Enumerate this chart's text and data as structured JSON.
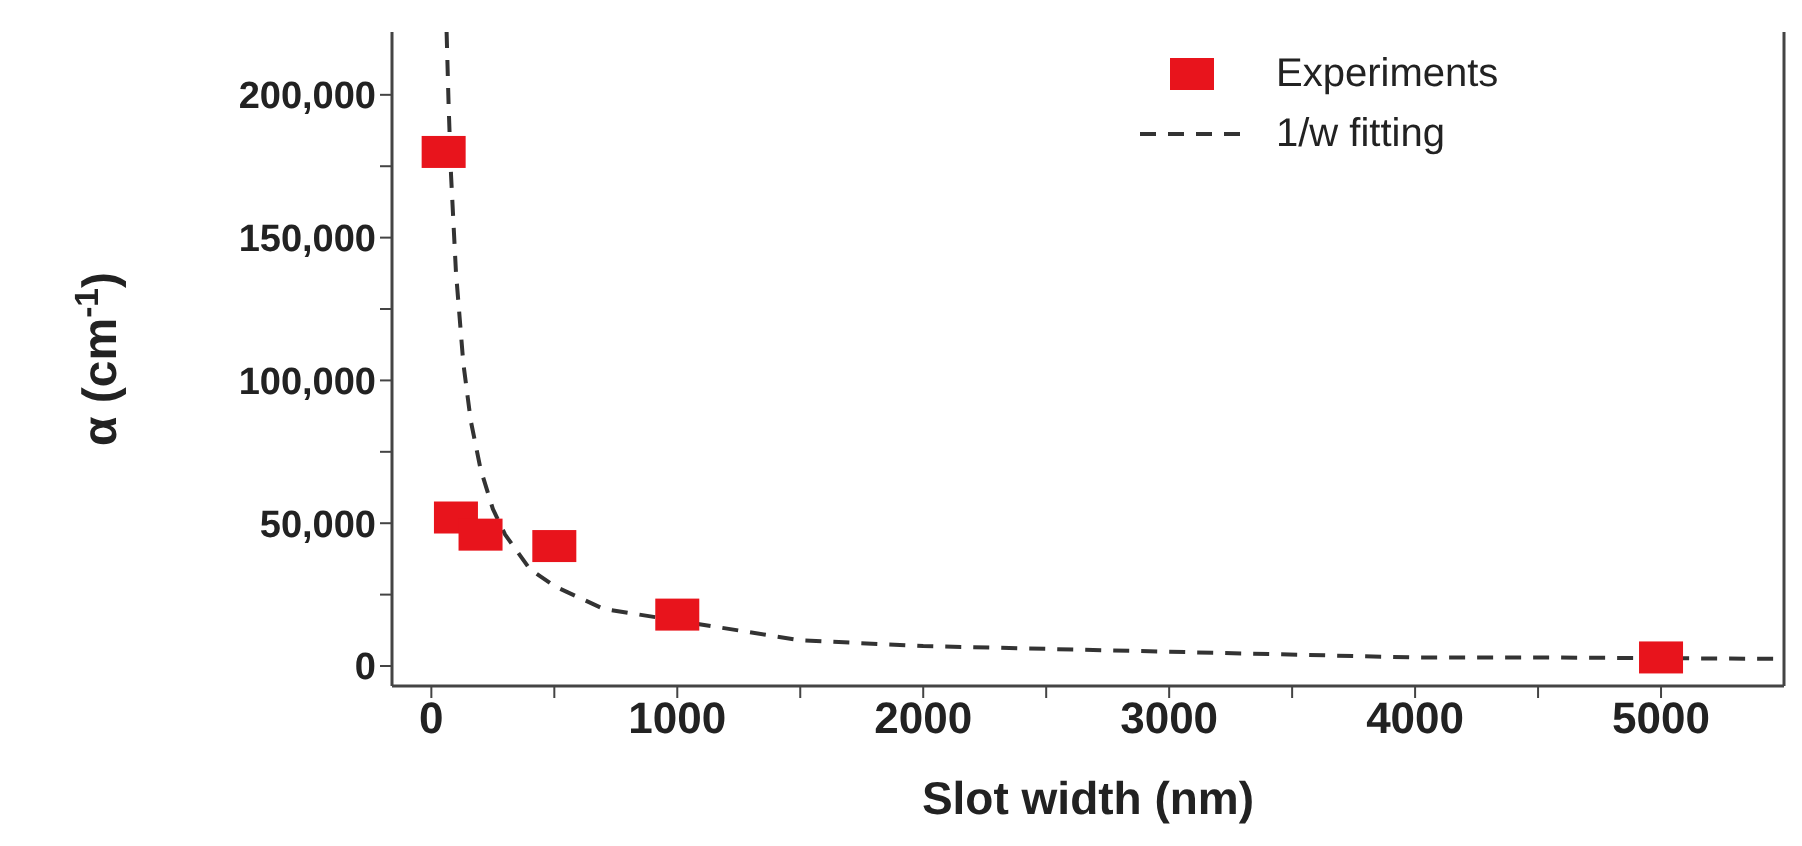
{
  "chart_data": {
    "type": "scatter",
    "xlabel": "Slot width (nm)",
    "ylabel": "α (cm$^{-1}$)",
    "xlim": [
      -160,
      5500
    ],
    "ylim": [
      -7000,
      222000
    ],
    "xticks": [
      0,
      {
        "value": 500,
        "label": null
      },
      1000,
      {
        "value": 1500,
        "label": null
      },
      2000,
      {
        "value": 2500,
        "label": null
      },
      3000,
      {
        "value": 3500,
        "label": null
      },
      4000,
      {
        "value": 4500,
        "label": null
      },
      5000
    ],
    "yticks": [
      {
        "value": 0,
        "label": "0"
      },
      {
        "value": 25000,
        "label": null
      },
      {
        "value": 50000,
        "label": "50,000"
      },
      {
        "value": 75000,
        "label": null
      },
      {
        "value": 100000,
        "label": "100,000"
      },
      {
        "value": 125000,
        "label": null
      },
      {
        "value": 150000,
        "label": "150,000"
      },
      {
        "value": 175000,
        "label": null
      },
      {
        "value": 200000,
        "label": "200,000"
      }
    ],
    "legend": "top right",
    "grid": false,
    "series": [
      {
        "name": "Experiments",
        "marker": "square",
        "color": "#e8141c",
        "x": [
          50,
          100,
          200,
          500,
          1000,
          5000
        ],
        "values": [
          180000,
          52000,
          46000,
          42000,
          18000,
          3000
        ]
      },
      {
        "name": "1/w fitting",
        "type": "line",
        "line_style": "dashed",
        "marker": "none",
        "color": "#333333",
        "x": [
          62,
          70,
          80,
          100,
          130,
          160,
          200,
          250,
          300,
          400,
          500,
          700,
          1500,
          2000,
          3000,
          4000,
          4500,
          5500
        ],
        "values": [
          222000,
          197000,
          172000,
          138000,
          106000,
          86000,
          69000,
          55000,
          46000,
          34000,
          28000,
          20000,
          9000,
          7000,
          5000,
          3000,
          3000,
          2500
        ]
      }
    ]
  }
}
